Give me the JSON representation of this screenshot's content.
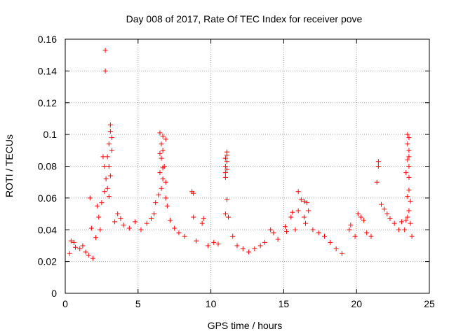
{
  "chart_data": {
    "type": "scatter",
    "title": "Day 008 of 2017, Rate Of TEC Index for receiver pove",
    "xlabel": "GPS time / hours",
    "ylabel": "ROTI / TECUs",
    "xlim": [
      0,
      25
    ],
    "ylim": [
      0,
      0.16
    ],
    "xticks": [
      0,
      5,
      10,
      15,
      20,
      25
    ],
    "yticks": [
      0,
      0.02,
      0.04,
      0.06,
      0.08,
      0.1,
      0.12,
      0.14,
      0.16
    ],
    "grid": true,
    "marker": "plus",
    "series": [
      {
        "name": "ROTI",
        "color": "#ff0000",
        "points": [
          [
            2.75,
            0.153
          ],
          [
            2.75,
            0.14
          ],
          [
            3.1,
            0.106
          ],
          [
            3.1,
            0.102
          ],
          [
            3.2,
            0.098
          ],
          [
            3.0,
            0.094
          ],
          [
            3.2,
            0.09
          ],
          [
            2.9,
            0.086
          ],
          [
            2.6,
            0.086
          ],
          [
            3.0,
            0.08
          ],
          [
            2.7,
            0.08
          ],
          [
            3.1,
            0.074
          ],
          [
            2.8,
            0.072
          ],
          [
            2.9,
            0.066
          ],
          [
            2.7,
            0.064
          ],
          [
            3.0,
            0.061
          ],
          [
            2.5,
            0.057
          ],
          [
            2.3,
            0.048
          ],
          [
            2.2,
            0.055
          ],
          [
            6.5,
            0.101
          ],
          [
            6.7,
            0.099
          ],
          [
            6.9,
            0.097
          ],
          [
            6.6,
            0.094
          ],
          [
            6.7,
            0.09
          ],
          [
            6.5,
            0.088
          ],
          [
            6.6,
            0.085
          ],
          [
            6.8,
            0.08
          ],
          [
            6.7,
            0.079
          ],
          [
            6.5,
            0.076
          ],
          [
            6.7,
            0.072
          ],
          [
            6.9,
            0.07
          ],
          [
            6.6,
            0.066
          ],
          [
            6.4,
            0.062
          ],
          [
            6.9,
            0.06
          ],
          [
            6.2,
            0.057
          ],
          [
            7.0,
            0.055
          ],
          [
            8.7,
            0.064
          ],
          [
            8.8,
            0.063
          ],
          [
            8.8,
            0.048
          ],
          [
            9.5,
            0.047
          ],
          [
            9.4,
            0.044
          ],
          [
            11.1,
            0.089
          ],
          [
            11.1,
            0.087
          ],
          [
            11.0,
            0.085
          ],
          [
            11.1,
            0.083
          ],
          [
            11.0,
            0.08
          ],
          [
            11.1,
            0.078
          ],
          [
            11.0,
            0.076
          ],
          [
            11.0,
            0.073
          ],
          [
            11.1,
            0.059
          ],
          [
            11.0,
            0.05
          ],
          [
            11.2,
            0.048
          ],
          [
            14.1,
            0.04
          ],
          [
            14.3,
            0.038
          ],
          [
            15.1,
            0.042
          ],
          [
            15.2,
            0.039
          ],
          [
            15.6,
            0.051
          ],
          [
            15.5,
            0.048
          ],
          [
            16.0,
            0.064
          ],
          [
            16.2,
            0.059
          ],
          [
            16.4,
            0.058
          ],
          [
            16.6,
            0.057
          ],
          [
            16.0,
            0.052
          ],
          [
            16.7,
            0.052
          ],
          [
            16.4,
            0.048
          ],
          [
            16.5,
            0.044
          ],
          [
            19.5,
            0.04
          ],
          [
            19.6,
            0.043
          ],
          [
            20.1,
            0.05
          ],
          [
            20.3,
            0.048
          ],
          [
            20.5,
            0.046
          ],
          [
            21.5,
            0.083
          ],
          [
            21.5,
            0.08
          ],
          [
            21.4,
            0.07
          ],
          [
            21.7,
            0.056
          ],
          [
            21.9,
            0.053
          ],
          [
            22.1,
            0.05
          ],
          [
            22.3,
            0.047
          ],
          [
            23.5,
            0.1
          ],
          [
            23.6,
            0.098
          ],
          [
            23.5,
            0.094
          ],
          [
            23.6,
            0.09
          ],
          [
            23.6,
            0.086
          ],
          [
            23.5,
            0.084
          ],
          [
            23.6,
            0.08
          ],
          [
            23.4,
            0.076
          ],
          [
            23.6,
            0.073
          ],
          [
            23.6,
            0.065
          ],
          [
            23.5,
            0.061
          ],
          [
            23.7,
            0.058
          ],
          [
            23.6,
            0.052
          ],
          [
            23.5,
            0.048
          ],
          [
            23.4,
            0.046
          ],
          [
            23.7,
            0.044
          ],
          [
            1.7,
            0.06
          ],
          [
            1.8,
            0.041
          ],
          [
            0.4,
            0.033
          ],
          [
            0.6,
            0.032
          ],
          [
            0.3,
            0.025
          ],
          [
            0.7,
            0.029
          ],
          [
            1.0,
            0.028
          ],
          [
            1.2,
            0.03
          ],
          [
            1.4,
            0.026
          ],
          [
            1.6,
            0.024
          ],
          [
            1.9,
            0.022
          ],
          [
            2.1,
            0.035
          ],
          [
            2.4,
            0.04
          ],
          [
            3.4,
            0.045
          ],
          [
            3.6,
            0.05
          ],
          [
            3.8,
            0.047
          ],
          [
            4.0,
            0.043
          ],
          [
            4.4,
            0.041
          ],
          [
            4.8,
            0.045
          ],
          [
            5.2,
            0.04
          ],
          [
            5.6,
            0.044
          ],
          [
            5.9,
            0.047
          ],
          [
            6.1,
            0.05
          ],
          [
            7.2,
            0.046
          ],
          [
            7.5,
            0.041
          ],
          [
            7.8,
            0.038
          ],
          [
            8.2,
            0.036
          ],
          [
            9.0,
            0.033
          ],
          [
            9.8,
            0.03
          ],
          [
            10.2,
            0.032
          ],
          [
            10.5,
            0.031
          ],
          [
            11.5,
            0.036
          ],
          [
            11.8,
            0.03
          ],
          [
            12.2,
            0.028
          ],
          [
            12.6,
            0.026
          ],
          [
            13.0,
            0.028
          ],
          [
            13.4,
            0.03
          ],
          [
            13.7,
            0.032
          ],
          [
            14.6,
            0.034
          ],
          [
            15.8,
            0.04
          ],
          [
            17.0,
            0.04
          ],
          [
            17.4,
            0.038
          ],
          [
            17.8,
            0.036
          ],
          [
            18.2,
            0.032
          ],
          [
            18.6,
            0.028
          ],
          [
            19.0,
            0.025
          ],
          [
            19.9,
            0.036
          ],
          [
            20.7,
            0.038
          ],
          [
            21.0,
            0.036
          ],
          [
            22.6,
            0.044
          ],
          [
            22.9,
            0.04
          ],
          [
            23.1,
            0.045
          ],
          [
            23.3,
            0.04
          ],
          [
            23.8,
            0.036
          ]
        ]
      }
    ]
  }
}
